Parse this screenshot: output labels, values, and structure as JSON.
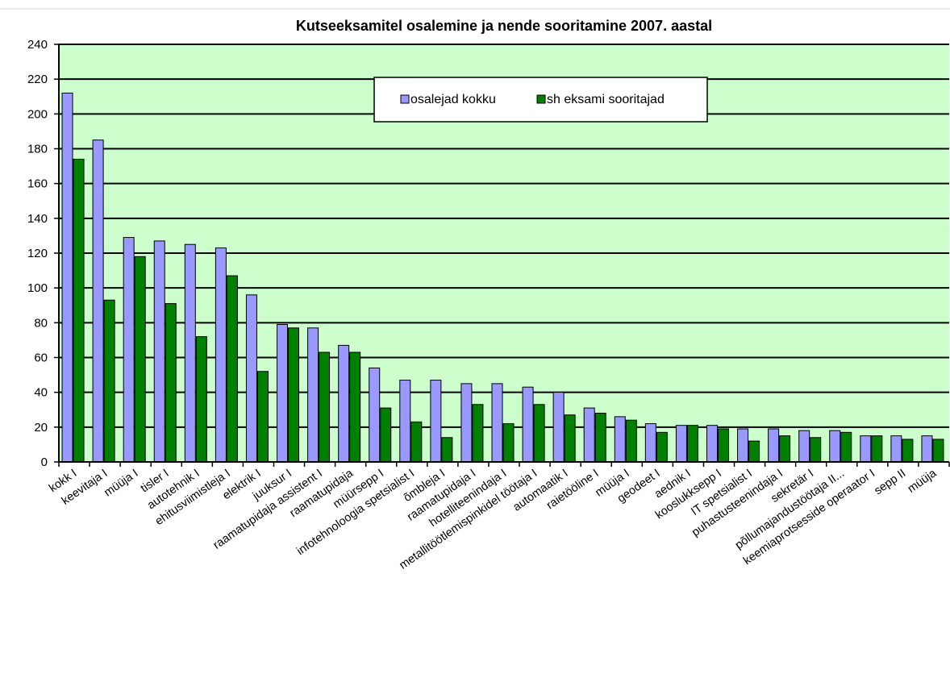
{
  "chart_data": {
    "type": "bar",
    "title": "Kutseeksamitel  osalemine ja nende sooritamine 2007. aastal",
    "xlabel": "",
    "ylabel": "",
    "ylim": [
      0,
      240
    ],
    "yticks": [
      0,
      20,
      40,
      60,
      80,
      100,
      120,
      140,
      160,
      180,
      200,
      220,
      240
    ],
    "grid": true,
    "legend_position": "top-right",
    "categories": [
      "kokk I",
      "keevitaja I",
      "müüja I",
      "tisler I",
      "autotehnik I",
      "ehitusviimistleja I",
      "elektrik I",
      "juuksur I",
      "raamatupidaja assistent I",
      "raamatupidaja",
      "müürsepp I",
      "infotehnoloogia spetsialist I",
      "õmbleja I",
      "raamatupidaja I",
      "hotellitеenindaja I",
      "metallitöötlemispinkidel töötaja I",
      "automaatik I",
      "raietööline I",
      "müüja I",
      "geodeet I",
      "aednik I",
      "kooslukksepp I",
      "IT spetsialist I",
      "puhastusteenindaja I",
      "sekretär I",
      "põllumajandustöötaja II...",
      "keemiaprotsesside operaator I",
      "sepp II",
      "müüja"
    ],
    "series": [
      {
        "name": "osalejad kokku",
        "color": "#9999ff",
        "values": [
          212,
          185,
          129,
          127,
          125,
          123,
          96,
          79,
          77,
          67,
          54,
          47,
          47,
          45,
          45,
          43,
          40,
          31,
          26,
          22,
          21,
          21,
          19,
          19,
          18,
          18,
          15,
          15,
          15
        ]
      },
      {
        "name": "sh eksami sooritajad",
        "color": "#008000",
        "values": [
          174,
          93,
          118,
          91,
          72,
          107,
          52,
          77,
          63,
          63,
          31,
          23,
          14,
          33,
          22,
          33,
          27,
          28,
          24,
          17,
          21,
          19,
          12,
          15,
          14,
          17,
          15,
          13,
          13
        ]
      }
    ],
    "plot_background": "#ccffcc"
  }
}
